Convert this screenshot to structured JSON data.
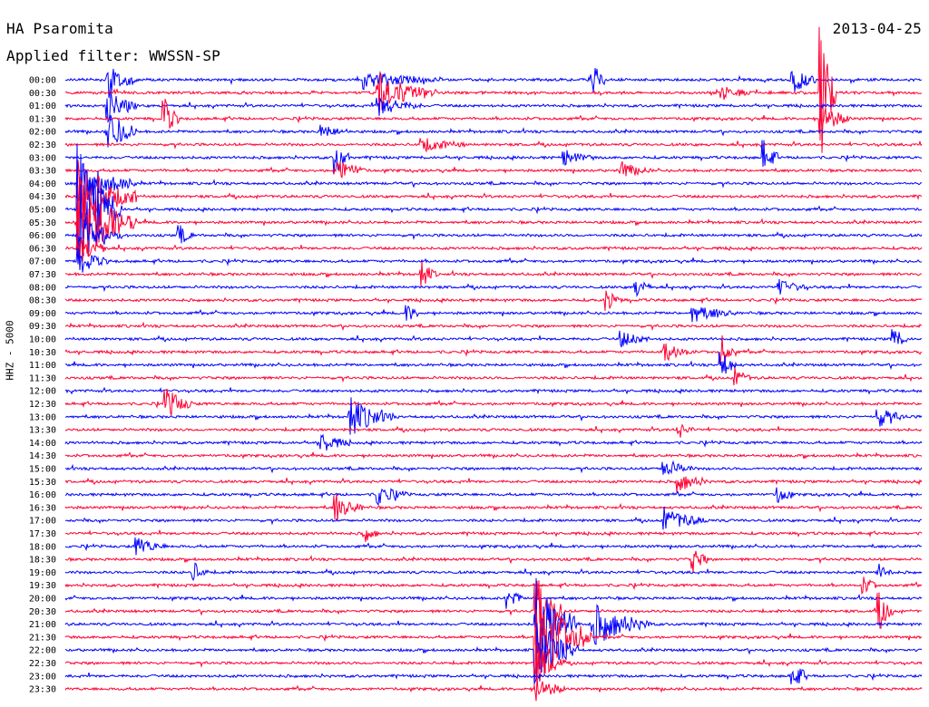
{
  "header": {
    "station": "HA Psaromita",
    "date": "2013-04-25",
    "filter_label": "Applied filter: WWSSN-SP"
  },
  "channel_label": "HHZ - 5000",
  "colors": {
    "even_row": "#0000ff",
    "odd_row": "#ff0033"
  },
  "chart_data": {
    "type": "line",
    "title": "HA Psaromita",
    "subtitle": "Applied filter: WWSSN-SP",
    "xlabel": "",
    "ylabel": "HHZ - 5000",
    "rows": [
      "00:00",
      "00:30",
      "01:00",
      "01:30",
      "02:00",
      "02:30",
      "03:00",
      "03:30",
      "04:00",
      "04:30",
      "05:00",
      "05:30",
      "06:00",
      "06:30",
      "07:00",
      "07:30",
      "08:00",
      "08:30",
      "09:00",
      "09:30",
      "10:00",
      "10:30",
      "11:00",
      "11:30",
      "12:00",
      "12:30",
      "13:00",
      "13:30",
      "14:00",
      "14:30",
      "15:00",
      "15:30",
      "16:00",
      "16:30",
      "17:00",
      "17:30",
      "18:00",
      "18:30",
      "19:00",
      "19:30",
      "20:00",
      "20:30",
      "21:00",
      "21:30",
      "22:00",
      "22:30",
      "23:00",
      "23:30"
    ],
    "row_minutes": 30,
    "events": [
      {
        "row": 0,
        "minute": 1.5,
        "amplitude": 3.0,
        "duration": 1.0
      },
      {
        "row": 0,
        "minute": 10.5,
        "amplitude": 1.5,
        "duration": 2.5
      },
      {
        "row": 0,
        "minute": 18.5,
        "amplitude": 2.5,
        "duration": 0.5
      },
      {
        "row": 0,
        "minute": 25.5,
        "amplitude": 2.0,
        "duration": 1.0
      },
      {
        "row": 1,
        "minute": 11.0,
        "amplitude": 3.0,
        "duration": 2.0
      },
      {
        "row": 1,
        "minute": 26.5,
        "amplitude": 10.0,
        "duration": 0.5
      },
      {
        "row": 1,
        "minute": 23.0,
        "amplitude": 1.2,
        "duration": 1.0
      },
      {
        "row": 2,
        "minute": 1.5,
        "amplitude": 2.5,
        "duration": 1.0
      },
      {
        "row": 2,
        "minute": 11.0,
        "amplitude": 1.5,
        "duration": 1.5
      },
      {
        "row": 3,
        "minute": 3.5,
        "amplitude": 3.0,
        "duration": 0.5
      },
      {
        "row": 3,
        "minute": 26.5,
        "amplitude": 2.5,
        "duration": 1.0
      },
      {
        "row": 4,
        "minute": 1.5,
        "amplitude": 4.0,
        "duration": 1.0
      },
      {
        "row": 4,
        "minute": 9.0,
        "amplitude": 1.0,
        "duration": 1.0
      },
      {
        "row": 5,
        "minute": 12.5,
        "amplitude": 1.2,
        "duration": 1.5
      },
      {
        "row": 6,
        "minute": 9.5,
        "amplitude": 2.5,
        "duration": 0.5
      },
      {
        "row": 6,
        "minute": 24.5,
        "amplitude": 2.5,
        "duration": 0.5
      },
      {
        "row": 6,
        "minute": 17.5,
        "amplitude": 1.2,
        "duration": 1.0
      },
      {
        "row": 7,
        "minute": 9.5,
        "amplitude": 2.0,
        "duration": 1.0
      },
      {
        "row": 7,
        "minute": 19.5,
        "amplitude": 1.2,
        "duration": 1.0
      },
      {
        "row": 8,
        "minute": 0.5,
        "amplitude": 3.5,
        "duration": 2.0
      },
      {
        "row": 9,
        "minute": 0.5,
        "amplitude": 6.0,
        "duration": 2.0
      },
      {
        "row": 10,
        "minute": 0.5,
        "amplitude": 10.0,
        "duration": 1.5
      },
      {
        "row": 11,
        "minute": 0.5,
        "amplitude": 7.0,
        "duration": 2.0
      },
      {
        "row": 12,
        "minute": 0.5,
        "amplitude": 3.0,
        "duration": 1.5
      },
      {
        "row": 12,
        "minute": 4.0,
        "amplitude": 1.5,
        "duration": 0.5
      },
      {
        "row": 13,
        "minute": 0.5,
        "amplitude": 2.5,
        "duration": 1.0
      },
      {
        "row": 14,
        "minute": 0.5,
        "amplitude": 2.0,
        "duration": 1.0
      },
      {
        "row": 15,
        "minute": 12.5,
        "amplitude": 2.0,
        "duration": 0.5
      },
      {
        "row": 16,
        "minute": 20.0,
        "amplitude": 1.5,
        "duration": 0.5
      },
      {
        "row": 16,
        "minute": 25.0,
        "amplitude": 1.2,
        "duration": 1.0
      },
      {
        "row": 17,
        "minute": 19.0,
        "amplitude": 1.5,
        "duration": 0.5
      },
      {
        "row": 18,
        "minute": 12.0,
        "amplitude": 1.2,
        "duration": 0.5
      },
      {
        "row": 18,
        "minute": 22.0,
        "amplitude": 1.5,
        "duration": 1.5
      },
      {
        "row": 20,
        "minute": 19.5,
        "amplitude": 1.2,
        "duration": 1.0
      },
      {
        "row": 20,
        "minute": 29.0,
        "amplitude": 2.0,
        "duration": 0.5
      },
      {
        "row": 21,
        "minute": 21.0,
        "amplitude": 1.5,
        "duration": 1.0
      },
      {
        "row": 21,
        "minute": 23.0,
        "amplitude": 2.5,
        "duration": 0.5
      },
      {
        "row": 22,
        "minute": 23.0,
        "amplitude": 2.5,
        "duration": 0.5
      },
      {
        "row": 23,
        "minute": 23.5,
        "amplitude": 1.5,
        "duration": 0.5
      },
      {
        "row": 25,
        "minute": 3.5,
        "amplitude": 2.5,
        "duration": 1.0
      },
      {
        "row": 26,
        "minute": 10.0,
        "amplitude": 3.0,
        "duration": 1.5
      },
      {
        "row": 26,
        "minute": 28.5,
        "amplitude": 1.5,
        "duration": 1.0
      },
      {
        "row": 27,
        "minute": 21.5,
        "amplitude": 1.2,
        "duration": 0.5
      },
      {
        "row": 28,
        "minute": 9.0,
        "amplitude": 1.5,
        "duration": 1.0
      },
      {
        "row": 30,
        "minute": 21.0,
        "amplitude": 1.5,
        "duration": 1.0
      },
      {
        "row": 31,
        "minute": 21.5,
        "amplitude": 1.5,
        "duration": 1.0
      },
      {
        "row": 32,
        "minute": 11.0,
        "amplitude": 1.5,
        "duration": 1.0
      },
      {
        "row": 32,
        "minute": 25.0,
        "amplitude": 1.5,
        "duration": 0.5
      },
      {
        "row": 33,
        "minute": 9.5,
        "amplitude": 2.0,
        "duration": 1.0
      },
      {
        "row": 34,
        "minute": 21.0,
        "amplitude": 2.0,
        "duration": 1.5
      },
      {
        "row": 35,
        "minute": 10.5,
        "amplitude": 1.2,
        "duration": 0.5
      },
      {
        "row": 36,
        "minute": 2.5,
        "amplitude": 1.5,
        "duration": 1.0
      },
      {
        "row": 37,
        "minute": 22.0,
        "amplitude": 2.0,
        "duration": 0.5
      },
      {
        "row": 38,
        "minute": 4.5,
        "amplitude": 1.5,
        "duration": 0.5
      },
      {
        "row": 38,
        "minute": 28.5,
        "amplitude": 1.2,
        "duration": 0.5
      },
      {
        "row": 39,
        "minute": 28.0,
        "amplitude": 1.2,
        "duration": 0.5
      },
      {
        "row": 40,
        "minute": 15.5,
        "amplitude": 2.0,
        "duration": 0.5
      },
      {
        "row": 41,
        "minute": 16.5,
        "amplitude": 6.0,
        "duration": 1.0
      },
      {
        "row": 41,
        "minute": 28.5,
        "amplitude": 3.0,
        "duration": 0.5
      },
      {
        "row": 42,
        "minute": 16.5,
        "amplitude": 8.0,
        "duration": 1.5
      },
      {
        "row": 42,
        "minute": 18.5,
        "amplitude": 3.5,
        "duration": 2.0
      },
      {
        "row": 43,
        "minute": 16.5,
        "amplitude": 8.0,
        "duration": 2.0
      },
      {
        "row": 44,
        "minute": 16.5,
        "amplitude": 5.0,
        "duration": 1.5
      },
      {
        "row": 45,
        "minute": 16.5,
        "amplitude": 3.5,
        "duration": 1.0
      },
      {
        "row": 46,
        "minute": 25.5,
        "amplitude": 2.5,
        "duration": 0.5
      },
      {
        "row": 47,
        "minute": 16.5,
        "amplitude": 2.0,
        "duration": 1.0
      }
    ],
    "grid": false,
    "legend": "none"
  }
}
